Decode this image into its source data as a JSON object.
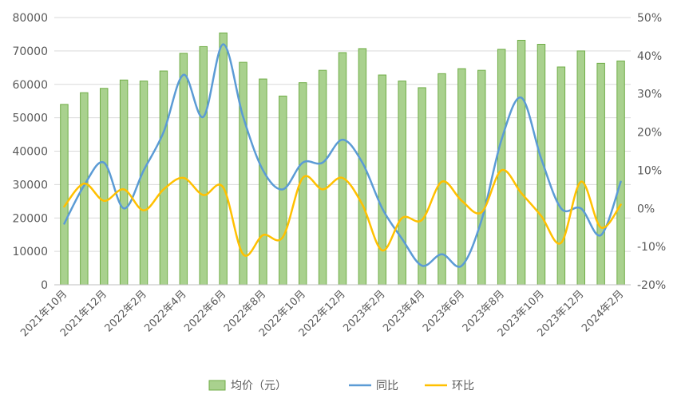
{
  "chart_data": {
    "type": "bar",
    "categories": [
      "2021年10月",
      "2021年11月",
      "2021年12月",
      "2022年1月",
      "2022年2月",
      "2022年3月",
      "2022年4月",
      "2022年5月",
      "2022年6月",
      "2022年7月",
      "2022年8月",
      "2022年9月",
      "2022年10月",
      "2022年11月",
      "2022年12月",
      "2023年1月",
      "2023年2月",
      "2023年3月",
      "2023年4月",
      "2023年5月",
      "2023年6月",
      "2023年7月",
      "2023年8月",
      "2023年9月",
      "2023年10月",
      "2023年11月",
      "2023年12月",
      "2024年1月",
      "2024年2月"
    ],
    "x_tick_labels": [
      "2021年10月",
      "2021年12月",
      "2022年2月",
      "2022年4月",
      "2022年6月",
      "2022年8月",
      "2022年10月",
      "2022年12月",
      "2023年2月",
      "2023年4月",
      "2023年6月",
      "2023年8月",
      "2023年10月",
      "2023年12月",
      "2024年2月"
    ],
    "series": [
      {
        "name": "均价（元）",
        "type": "bar",
        "axis": "left",
        "color": "#a9d18e",
        "edge_color": "#70ad47",
        "values": [
          54000,
          57500,
          58800,
          61300,
          61000,
          64000,
          69300,
          71300,
          75400,
          66600,
          61600,
          56500,
          60500,
          64200,
          69500,
          70700,
          62800,
          61000,
          59000,
          63200,
          64700,
          64200,
          70500,
          73200,
          72000,
          65200,
          70000,
          66300,
          67000
        ]
      },
      {
        "name": "同比",
        "type": "line",
        "axis": "right",
        "color": "#5b9bd5",
        "values": [
          -4,
          6,
          12,
          0,
          10,
          20,
          35,
          24,
          43,
          24,
          10,
          5,
          12,
          12,
          18,
          12,
          0,
          -8,
          -15,
          -12,
          -15,
          -3,
          18,
          29,
          13,
          0,
          0,
          -7,
          7
        ]
      },
      {
        "name": "环比",
        "type": "line",
        "axis": "right",
        "color": "#ffc000",
        "values": [
          0.5,
          6.5,
          2,
          5,
          -0.5,
          5,
          8,
          3.5,
          5.5,
          -12,
          -7,
          -7.5,
          8,
          5,
          8,
          1,
          -11,
          -2.5,
          -3,
          7,
          2,
          -1,
          10,
          4,
          -2,
          -9,
          7,
          -5,
          1
        ]
      }
    ],
    "y_left": {
      "min": 0,
      "max": 80000,
      "ticks": [
        "0",
        "10000",
        "20000",
        "30000",
        "40000",
        "50000",
        "60000",
        "70000",
        "80000"
      ]
    },
    "y_right": {
      "min": -20,
      "max": 50,
      "ticks": [
        "-20%",
        "-10%",
        "0%",
        "10%",
        "20%",
        "30%",
        "40%",
        "50%"
      ]
    },
    "grid": "horizontal",
    "legend_position": "bottom"
  }
}
